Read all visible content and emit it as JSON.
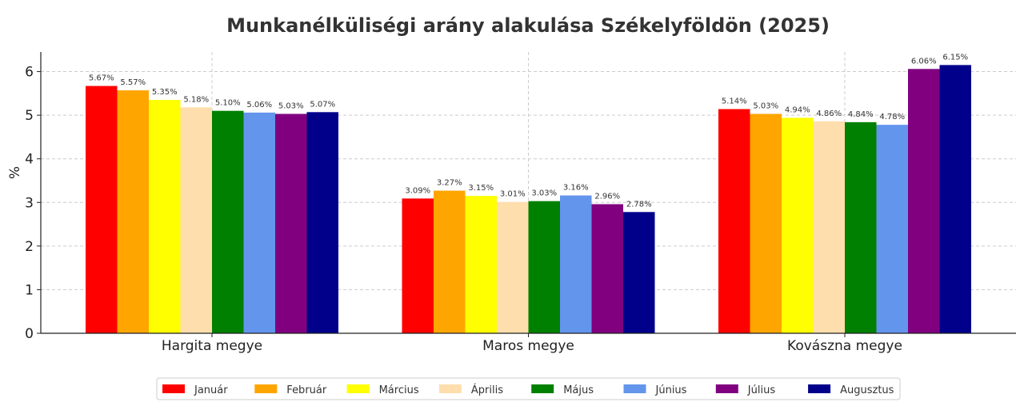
{
  "chart_data": {
    "type": "bar",
    "title": "Munkanélküliségi arány alakulása Székelyföldön (2025)",
    "xlabel": "",
    "ylabel": "%",
    "ylim": [
      0,
      6.45
    ],
    "yticks": [
      0,
      1,
      2,
      3,
      4,
      5,
      6
    ],
    "grid": true,
    "legend_position": "bottom-center",
    "categories": [
      "Hargita megye",
      "Maros megye",
      "Kovászna megye"
    ],
    "series": [
      {
        "name": "Január",
        "color": "#ff0000",
        "values": [
          5.67,
          3.09,
          5.14
        ],
        "labels": [
          "5.67%",
          "3.09%",
          "5.14%"
        ]
      },
      {
        "name": "Február",
        "color": "#ffa500",
        "values": [
          5.57,
          3.27,
          5.03
        ],
        "labels": [
          "5.57%",
          "3.27%",
          "5.03%"
        ]
      },
      {
        "name": "Március",
        "color": "#ffff00",
        "values": [
          5.35,
          3.15,
          4.94
        ],
        "labels": [
          "5.35%",
          "3.15%",
          "4.94%"
        ]
      },
      {
        "name": "Április",
        "color": "#ffdead",
        "values": [
          5.18,
          3.01,
          4.86
        ],
        "labels": [
          "5.18%",
          "3.01%",
          "4.86%"
        ]
      },
      {
        "name": "Május",
        "color": "#008000",
        "values": [
          5.1,
          3.03,
          4.84
        ],
        "labels": [
          "5.10%",
          "3.03%",
          "4.84%"
        ]
      },
      {
        "name": "Június",
        "color": "#6495ed",
        "values": [
          5.06,
          3.16,
          4.78
        ],
        "labels": [
          "5.06%",
          "3.16%",
          "4.78%"
        ]
      },
      {
        "name": "Július",
        "color": "#800080",
        "values": [
          5.03,
          2.96,
          6.06
        ],
        "labels": [
          "5.03%",
          "2.96%",
          "6.06%"
        ]
      },
      {
        "name": "Augusztus",
        "color": "#00008b",
        "values": [
          5.07,
          2.78,
          6.15
        ],
        "labels": [
          "5.07%",
          "2.78%",
          "6.15%"
        ]
      }
    ]
  }
}
